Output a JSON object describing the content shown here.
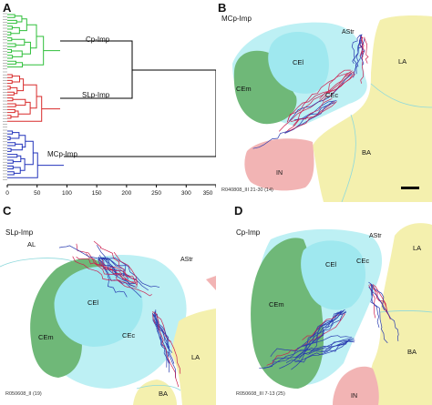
{
  "panels": {
    "a": {
      "letter": "A",
      "clusters": [
        {
          "label": "Cp-Imp",
          "color": "#2fbf3a"
        },
        {
          "label": "SLp-Imp",
          "color": "#d82a2a"
        },
        {
          "label": "MCp-Imp",
          "color": "#2233bb"
        }
      ],
      "axis_ticks": [
        "0",
        "50",
        "100",
        "150",
        "200",
        "250",
        "300",
        "350"
      ]
    },
    "b": {
      "letter": "B",
      "title": "MCp-Imp",
      "regions": {
        "astr": "AStr",
        "cei": "CEl",
        "cem": "CEm",
        "cec": "CEc",
        "la": "LA",
        "ba": "BA",
        "in": "IN"
      },
      "footer": "R040808_III 21-30 (14)"
    },
    "c": {
      "letter": "C",
      "title": "SLp-Imp",
      "regions": {
        "al": "AL",
        "astr": "AStr",
        "cei": "CEl",
        "cem": "CEm",
        "cec": "CEc",
        "la": "LA",
        "ba": "BA"
      },
      "footer": "R050608_II (19)"
    },
    "d": {
      "letter": "D",
      "title": "Cp-Imp",
      "regions": {
        "astr": "AStr",
        "cei": "CEl",
        "cec": "CEc",
        "cem": "CEm",
        "la": "LA",
        "ba": "BA",
        "in": "IN"
      },
      "footer": "R050608_III 7-13 (25)"
    },
    "colors": {
      "cyan_region": "#bdf0f4",
      "cei_region": "#9fe8ef",
      "green_region": "#6fb878",
      "yellow_region": "#f4f0ae",
      "pink_region": "#f2b4b4",
      "axon_blue": "#2a3cb0",
      "axon_red": "#cc1f4f"
    }
  }
}
